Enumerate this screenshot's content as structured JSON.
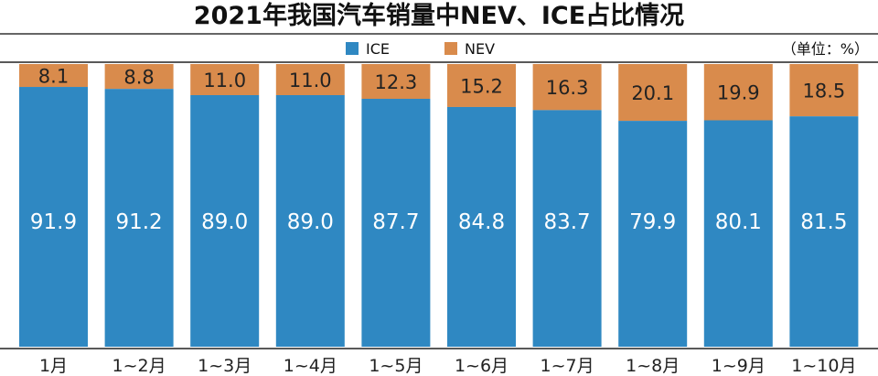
{
  "chart_data": {
    "type": "bar",
    "stacked": true,
    "title": "2021年我国汽车销量中NEV、ICE占比情况",
    "unit": "（单位：%）",
    "categories": [
      "1月",
      "1~2月",
      "1~3月",
      "1~4月",
      "1~5月",
      "1~6月",
      "1~7月",
      "1~8月",
      "1~9月",
      "1~10月"
    ],
    "series": [
      {
        "name": "ICE",
        "values": [
          91.9,
          91.2,
          89.0,
          89.0,
          87.7,
          84.8,
          83.7,
          79.9,
          80.1,
          81.5
        ],
        "labels": [
          "91.9",
          "91.2",
          "89.0",
          "89.0",
          "87.7",
          "84.8",
          "83.7",
          "79.9",
          "80.1",
          "81.5"
        ],
        "color": "#2f88c2"
      },
      {
        "name": "NEV",
        "values": [
          8.1,
          8.8,
          11.0,
          11.0,
          12.3,
          15.2,
          16.3,
          20.1,
          19.9,
          18.5
        ],
        "labels": [
          "8.1",
          "8.8",
          "11.0",
          "11.0",
          "12.3",
          "15.2",
          "16.3",
          "20.1",
          "19.9",
          "18.5"
        ],
        "color": "#d98b4c"
      }
    ],
    "ylim": [
      0,
      100
    ],
    "legend": "top-center"
  }
}
